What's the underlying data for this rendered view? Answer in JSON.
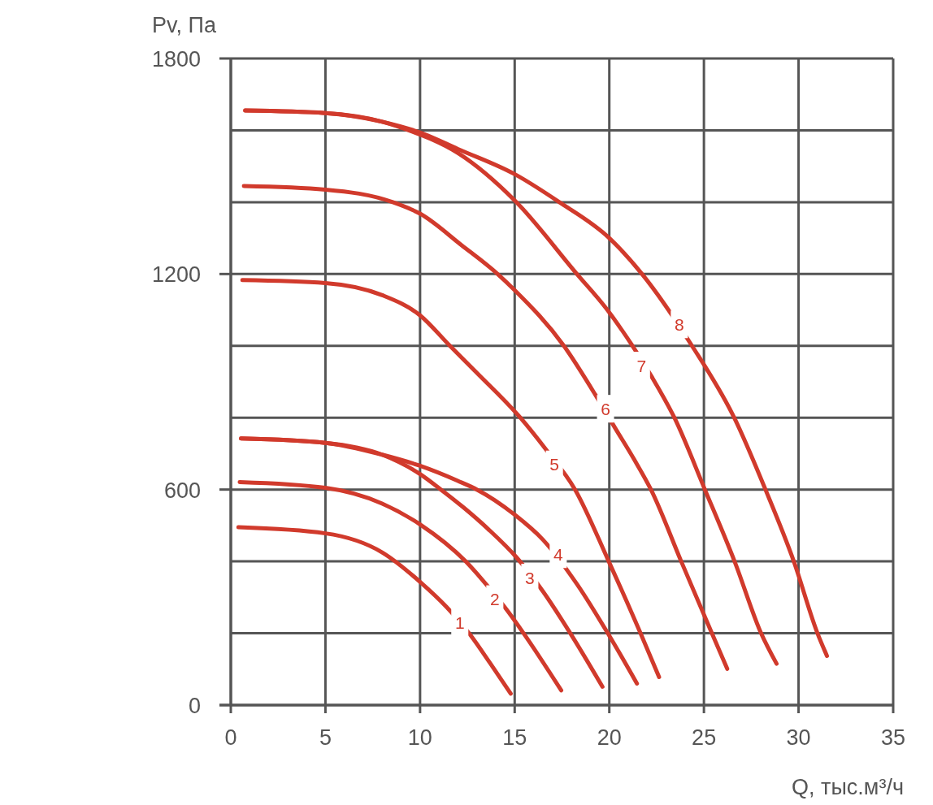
{
  "chart_data": {
    "type": "line",
    "xlabel": "Q, тыс.м³/ч",
    "ylabel": "Pv, Па",
    "xlim": [
      0,
      35
    ],
    "ylim": [
      0,
      1800
    ],
    "xticks": [
      0,
      5,
      10,
      15,
      20,
      25,
      30,
      35
    ],
    "yticks": [
      0,
      {
        "value": 200,
        "label": null
      },
      {
        "value": 400,
        "label": null
      },
      600,
      {
        "value": 800,
        "label": null
      },
      {
        "value": 1000,
        "label": null
      },
      1200,
      {
        "value": 1400,
        "label": null
      },
      {
        "value": 1600,
        "label": null
      },
      1800
    ],
    "grid": true,
    "line_style": "solid",
    "series": [
      {
        "color": "#d13a2c",
        "x": [
          0.4,
          5,
          8,
          10,
          11.4,
          12.66,
          13.71,
          14.79
        ],
        "values": [
          495,
          478,
          425,
          343,
          273,
          195,
          116,
          32
        ]
      },
      {
        "color": "#d13a2c",
        "x": [
          0.47,
          5,
          8,
          10,
          12.41,
          13.3,
          14.6,
          15.47,
          17.46
        ],
        "values": [
          621,
          605,
          561,
          503,
          400,
          348,
          264,
          200,
          41
        ]
      },
      {
        "color": "#d13a2c",
        "x": [
          0.54,
          5,
          8,
          10,
          11.1,
          12.3,
          13.6,
          15.1,
          16.5,
          17.94,
          19.64
        ],
        "values": [
          742,
          730,
          697,
          643,
          600,
          550,
          490,
          411,
          316,
          200,
          51
        ]
      },
      {
        "color": "#d13a2c",
        "x": [
          0.54,
          5,
          8,
          10,
          12,
          13,
          15,
          16.5,
          18.3,
          19.92,
          21.46
        ],
        "values": [
          742,
          730,
          697,
          666,
          624,
          600,
          530,
          460,
          336,
          200,
          60
        ]
      },
      {
        "color": "#d13a2c",
        "x": [
          0.61,
          5,
          8,
          10,
          11.58,
          13,
          15.3,
          16.6,
          18.19,
          19.97,
          21.65,
          22.63
        ],
        "values": [
          1183,
          1175,
          1141,
          1085,
          1000,
          925,
          800,
          715,
          600,
          400,
          200,
          78
        ]
      },
      {
        "color": "#d13a2c",
        "x": [
          0.69,
          5,
          8.56,
          10,
          12.2,
          14.1,
          15,
          17.6,
          19.26,
          20.3,
          21.3,
          22.2,
          23.8,
          25.42,
          26.23
        ],
        "values": [
          1445,
          1435,
          1400,
          1368,
          1280,
          1200,
          1155,
          1000,
          864,
          772,
          685,
          600,
          400,
          200,
          101
        ]
      },
      {
        "color": "#d13a2c",
        "x": [
          0.76,
          5,
          8,
          9.4,
          12,
          15,
          18.29,
          19.84,
          21.2,
          22.23,
          23.44,
          25.05,
          26.62,
          28.02,
          28.84
        ],
        "values": [
          1655,
          1648,
          1624,
          1600,
          1537,
          1405,
          1200,
          1104,
          1002,
          915,
          800,
          600,
          400,
          200,
          115
        ]
      },
      {
        "color": "#d13a2c",
        "x": [
          0.76,
          5,
          8,
          10,
          12,
          15,
          17.36,
          20,
          21.73,
          24.37,
          26.6,
          28.25,
          29.75,
          31,
          31.5
        ],
        "values": [
          1655,
          1648,
          1624,
          1594,
          1548,
          1478,
          1400,
          1300,
          1200,
          1000,
          800,
          600,
          400,
          200,
          137
        ]
      }
    ],
    "annotations": [
      {
        "text": "1",
        "x": 12.1,
        "y": 230
      },
      {
        "text": "2",
        "x": 13.95,
        "y": 295
      },
      {
        "text": "3",
        "x": 15.8,
        "y": 355
      },
      {
        "text": "4",
        "x": 17.3,
        "y": 420
      },
      {
        "text": "5",
        "x": 17.1,
        "y": 670
      },
      {
        "text": "6",
        "x": 19.8,
        "y": 825
      },
      {
        "text": "7",
        "x": 21.7,
        "y": 945
      },
      {
        "text": "8",
        "x": 23.7,
        "y": 1060
      }
    ]
  }
}
